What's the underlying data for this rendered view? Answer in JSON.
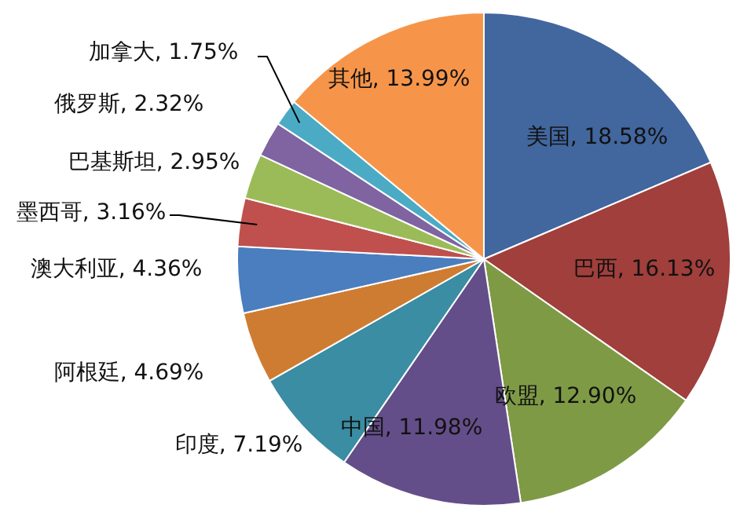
{
  "chart_data": {
    "type": "pie",
    "categories": [
      "美国",
      "巴西",
      "欧盟",
      "中国",
      "印度",
      "阿根廷",
      "澳大利亚",
      "墨西哥",
      "巴基斯坦",
      "俄罗斯",
      "加拿大",
      "其他"
    ],
    "values": [
      18.58,
      16.13,
      12.9,
      11.98,
      7.19,
      4.69,
      4.36,
      3.16,
      2.95,
      2.32,
      1.75,
      13.99
    ],
    "value_labels": [
      "18.58%",
      "16.13%",
      "12.90%",
      "11.98%",
      "7.19%",
      "4.69%",
      "4.36%",
      "3.16%",
      "2.95%",
      "2.32%",
      "1.75%",
      "13.99%"
    ],
    "colors": [
      "#42669e",
      "#a03f3b",
      "#7e9a45",
      "#644e89",
      "#3a8da2",
      "#cf7c33",
      "#4a7ebf",
      "#c0504d",
      "#9bbb59",
      "#7f64a1",
      "#4babc5",
      "#f6954a"
    ]
  }
}
